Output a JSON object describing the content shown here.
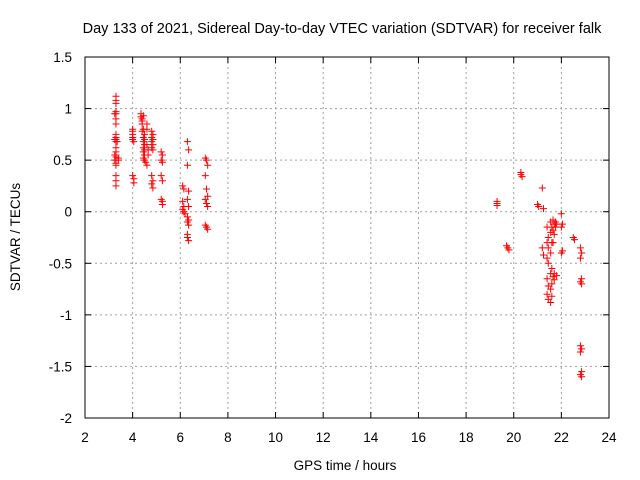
{
  "chart_data": {
    "type": "scatter",
    "title": "Day 133 of 2021, Sidereal Day-to-day VTEC variation (SDTVAR) for receiver falk",
    "xlabel": "GPS time / hours",
    "ylabel": "SDTVAR / TECUs",
    "xlim": [
      2,
      24
    ],
    "ylim": [
      -2,
      1.5
    ],
    "xticks": [
      2,
      4,
      6,
      8,
      10,
      12,
      14,
      16,
      18,
      20,
      22,
      24
    ],
    "yticks": [
      -2,
      -1.5,
      -1,
      -0.5,
      0,
      0.5,
      1,
      1.5
    ],
    "xtick_labels": [
      "2",
      "4",
      "6",
      "8",
      "10",
      "12",
      "14",
      "16",
      "18",
      "20",
      "22",
      "24"
    ],
    "ytick_labels": [
      "-2",
      "-1.5",
      "-1",
      "-0.5",
      "0",
      "0.5",
      "1",
      "1.5"
    ],
    "grid": true,
    "marker": "+",
    "color": "#ff0000",
    "series": [
      {
        "name": "SDTVAR",
        "points": [
          [
            3.3,
            1.12
          ],
          [
            3.3,
            1.08
          ],
          [
            3.3,
            1.05
          ],
          [
            3.3,
            0.97
          ],
          [
            3.3,
            0.95
          ],
          [
            3.3,
            0.9
          ],
          [
            3.3,
            0.85
          ],
          [
            3.3,
            0.75
          ],
          [
            3.3,
            0.72
          ],
          [
            3.3,
            0.7
          ],
          [
            3.3,
            0.68
          ],
          [
            3.3,
            0.62
          ],
          [
            3.3,
            0.58
          ],
          [
            3.3,
            0.55
          ],
          [
            3.3,
            0.53
          ],
          [
            3.3,
            0.5
          ],
          [
            3.3,
            0.47
          ],
          [
            3.3,
            0.45
          ],
          [
            3.3,
            0.35
          ],
          [
            3.3,
            0.3
          ],
          [
            3.3,
            0.25
          ],
          [
            3.25,
            0.95
          ],
          [
            3.25,
            0.7
          ],
          [
            3.25,
            0.55
          ],
          [
            3.25,
            0.5
          ],
          [
            3.4,
            0.52
          ],
          [
            3.4,
            0.5
          ],
          [
            3.35,
            0.68
          ],
          [
            4.0,
            0.8
          ],
          [
            4.0,
            0.78
          ],
          [
            4.0,
            0.75
          ],
          [
            4.0,
            0.72
          ],
          [
            4.0,
            0.7
          ],
          [
            4.05,
            0.68
          ],
          [
            4.0,
            0.35
          ],
          [
            4.05,
            0.32
          ],
          [
            4.05,
            0.28
          ],
          [
            4.35,
            0.95
          ],
          [
            4.35,
            0.92
          ],
          [
            4.4,
            0.9
          ],
          [
            4.4,
            0.88
          ],
          [
            4.45,
            0.93
          ],
          [
            4.4,
            0.85
          ],
          [
            4.45,
            0.8
          ],
          [
            4.4,
            0.78
          ],
          [
            4.5,
            0.75
          ],
          [
            4.45,
            0.72
          ],
          [
            4.5,
            0.7
          ],
          [
            4.45,
            0.68
          ],
          [
            4.5,
            0.65
          ],
          [
            4.45,
            0.62
          ],
          [
            4.5,
            0.6
          ],
          [
            4.45,
            0.58
          ],
          [
            4.5,
            0.55
          ],
          [
            4.45,
            0.52
          ],
          [
            4.5,
            0.5
          ],
          [
            4.55,
            0.48
          ],
          [
            4.6,
            0.45
          ],
          [
            4.6,
            0.85
          ],
          [
            4.6,
            0.8
          ],
          [
            4.6,
            0.65
          ],
          [
            4.65,
            0.6
          ],
          [
            4.65,
            0.55
          ],
          [
            4.8,
            0.78
          ],
          [
            4.85,
            0.75
          ],
          [
            4.8,
            0.72
          ],
          [
            4.85,
            0.7
          ],
          [
            4.8,
            0.68
          ],
          [
            4.85,
            0.65
          ],
          [
            4.8,
            0.62
          ],
          [
            4.85,
            0.6
          ],
          [
            4.8,
            0.35
          ],
          [
            4.85,
            0.3
          ],
          [
            4.8,
            0.27
          ],
          [
            4.85,
            0.23
          ],
          [
            5.2,
            0.58
          ],
          [
            5.25,
            0.55
          ],
          [
            5.2,
            0.5
          ],
          [
            5.25,
            0.48
          ],
          [
            5.2,
            0.35
          ],
          [
            5.25,
            0.3
          ],
          [
            5.2,
            0.12
          ],
          [
            5.25,
            0.1
          ],
          [
            5.25,
            0.07
          ],
          [
            6.1,
            0.25
          ],
          [
            6.15,
            0.22
          ],
          [
            6.1,
            0.1
          ],
          [
            6.15,
            0.05
          ],
          [
            6.1,
            0.02
          ],
          [
            6.15,
            0.0
          ],
          [
            6.2,
            -0.02
          ],
          [
            6.3,
            0.68
          ],
          [
            6.35,
            0.6
          ],
          [
            6.3,
            0.45
          ],
          [
            6.35,
            0.2
          ],
          [
            6.3,
            0.12
          ],
          [
            6.35,
            0.05
          ],
          [
            6.3,
            -0.05
          ],
          [
            6.35,
            -0.08
          ],
          [
            6.3,
            -0.1
          ],
          [
            6.35,
            -0.13
          ],
          [
            6.3,
            -0.22
          ],
          [
            6.3,
            -0.25
          ],
          [
            6.35,
            -0.28
          ],
          [
            7.05,
            0.52
          ],
          [
            7.1,
            0.5
          ],
          [
            7.15,
            0.45
          ],
          [
            7.05,
            0.35
          ],
          [
            7.1,
            0.22
          ],
          [
            7.15,
            0.15
          ],
          [
            7.05,
            0.12
          ],
          [
            7.1,
            0.08
          ],
          [
            7.15,
            0.05
          ],
          [
            7.05,
            -0.13
          ],
          [
            7.1,
            -0.15
          ],
          [
            7.15,
            -0.17
          ],
          [
            19.3,
            0.1
          ],
          [
            19.3,
            0.08
          ],
          [
            19.3,
            0.06
          ],
          [
            19.7,
            -0.33
          ],
          [
            19.75,
            -0.35
          ],
          [
            19.8,
            -0.37
          ],
          [
            20.3,
            0.38
          ],
          [
            20.3,
            0.36
          ],
          [
            20.35,
            0.34
          ],
          [
            21.0,
            0.07
          ],
          [
            21.05,
            0.05
          ],
          [
            21.2,
            0.23
          ],
          [
            21.25,
            0.03
          ],
          [
            21.2,
            -0.35
          ],
          [
            21.25,
            -0.42
          ],
          [
            21.4,
            -0.15
          ],
          [
            21.45,
            -0.25
          ],
          [
            21.4,
            -0.3
          ],
          [
            21.45,
            -0.35
          ],
          [
            21.4,
            -0.45
          ],
          [
            21.45,
            -0.5
          ],
          [
            21.4,
            -0.65
          ],
          [
            21.45,
            -0.72
          ],
          [
            21.4,
            -0.8
          ],
          [
            21.45,
            -0.85
          ],
          [
            21.55,
            -0.1
          ],
          [
            21.6,
            -0.15
          ],
          [
            21.55,
            -0.2
          ],
          [
            21.6,
            -0.3
          ],
          [
            21.55,
            -0.4
          ],
          [
            21.6,
            -0.55
          ],
          [
            21.55,
            -0.6
          ],
          [
            21.6,
            -0.7
          ],
          [
            21.55,
            -0.75
          ],
          [
            21.6,
            -0.82
          ],
          [
            21.55,
            -0.88
          ],
          [
            21.65,
            -0.08
          ],
          [
            21.7,
            -0.12
          ],
          [
            21.65,
            -0.18
          ],
          [
            21.7,
            -0.22
          ],
          [
            21.65,
            -0.3
          ],
          [
            21.7,
            -0.6
          ],
          [
            21.65,
            -0.63
          ],
          [
            21.7,
            -0.66
          ],
          [
            21.75,
            -0.1
          ],
          [
            21.8,
            -0.12
          ],
          [
            21.75,
            -0.15
          ],
          [
            21.8,
            -0.62
          ],
          [
            22.0,
            -0.02
          ],
          [
            22.05,
            -0.12
          ],
          [
            22.0,
            -0.15
          ],
          [
            22.05,
            -0.38
          ],
          [
            22.0,
            -0.4
          ],
          [
            22.5,
            -0.25
          ],
          [
            22.55,
            -0.27
          ],
          [
            22.8,
            -0.35
          ],
          [
            22.85,
            -0.4
          ],
          [
            22.8,
            -0.45
          ],
          [
            22.85,
            -0.65
          ],
          [
            22.8,
            -0.68
          ],
          [
            22.85,
            -0.7
          ],
          [
            22.8,
            -1.3
          ],
          [
            22.85,
            -1.33
          ],
          [
            22.8,
            -1.36
          ],
          [
            22.85,
            -1.55
          ],
          [
            22.8,
            -1.58
          ],
          [
            22.85,
            -1.6
          ]
        ]
      }
    ]
  }
}
